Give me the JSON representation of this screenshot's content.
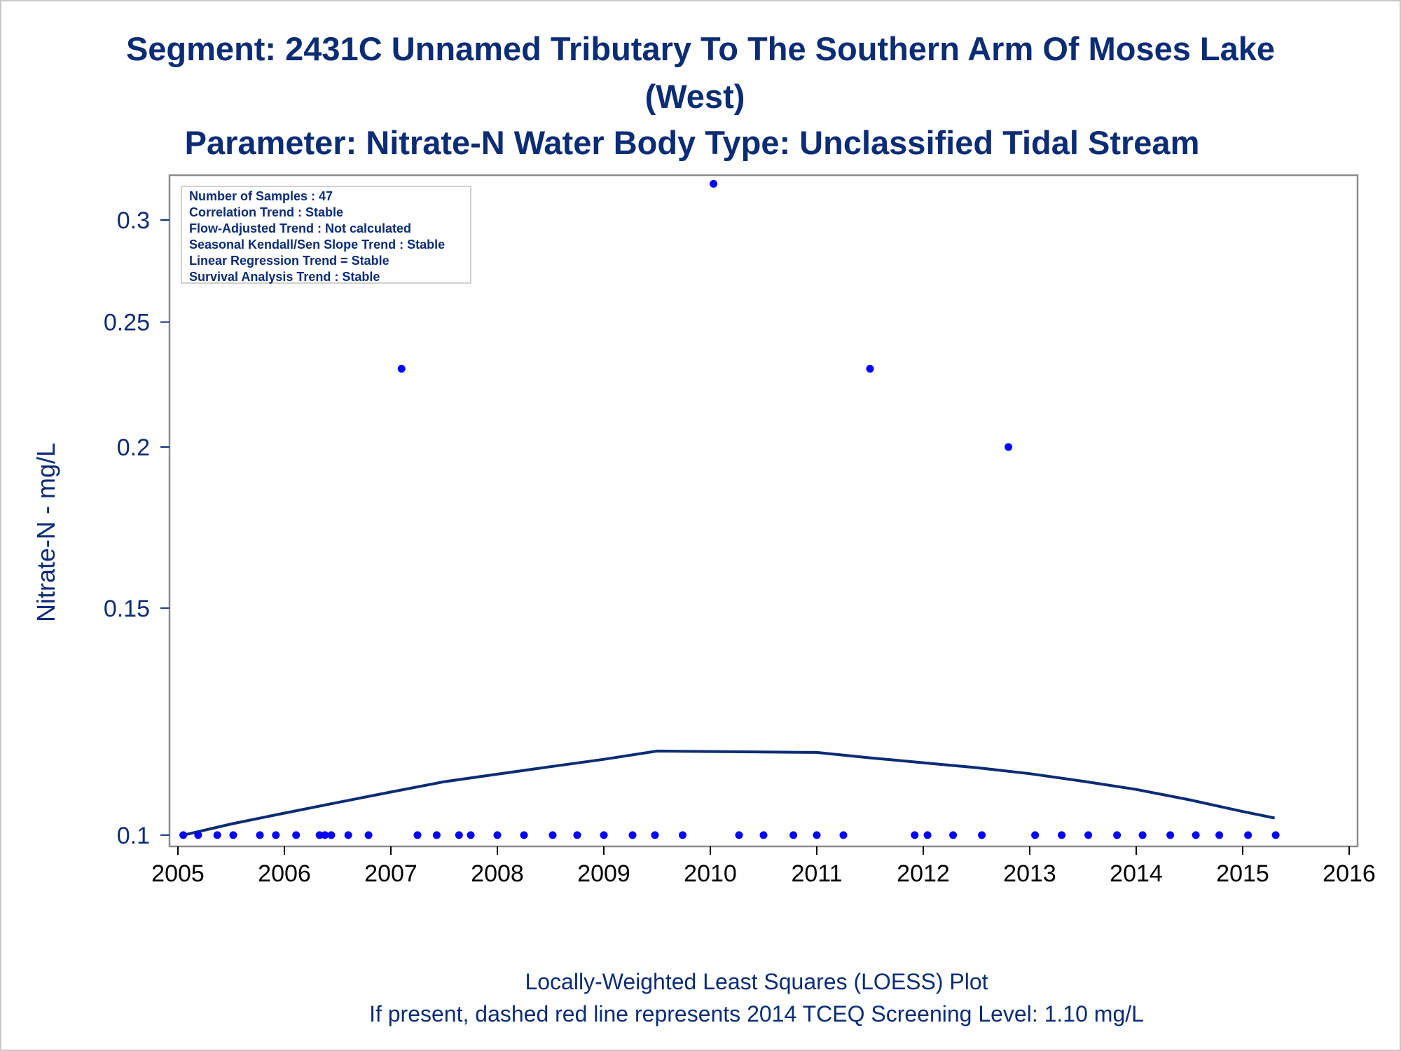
{
  "chart_data": {
    "type": "scatter",
    "title": "Segment: 2431C  Unnamed Tributary To The Southern Arm Of Moses Lake",
    "title_line2": "(West)",
    "subtitle": "Parameter: Nitrate-N   Water Body Type: Unclassified Tidal Stream",
    "xlabel": "",
    "ylabel": "Nitrate-N - mg/L",
    "y_scale": "log",
    "xlim": [
      2005,
      2016
    ],
    "ylim": [
      0.098,
      0.325
    ],
    "x_ticks": [
      2005,
      2006,
      2007,
      2008,
      2009,
      2010,
      2011,
      2012,
      2013,
      2014,
      2015,
      2016
    ],
    "y_ticks": [
      0.1,
      0.15,
      0.2,
      0.25,
      0.3
    ],
    "y_tick_labels": [
      "0.1",
      "0.15",
      "0.2",
      "0.25",
      "0.3"
    ],
    "grid": false,
    "legend": "none",
    "colors": {
      "points": "#0000ff",
      "loess": "#0c2c74",
      "text": "#0c2c74",
      "frame": "#8c8c8c"
    },
    "series": [
      {
        "kind": "scatter",
        "x": [
          2005.05,
          2005.19,
          2005.37,
          2005.52,
          2005.77,
          2005.92,
          2006.11,
          2006.33,
          2006.38,
          2006.44,
          2006.6,
          2006.79,
          2007.1,
          2007.25,
          2007.43,
          2007.64,
          2007.75,
          2008.0,
          2008.25,
          2008.52,
          2008.75,
          2009.0,
          2009.27,
          2009.48,
          2009.74,
          2010.03,
          2010.27,
          2010.5,
          2010.78,
          2011.0,
          2011.25,
          2011.5,
          2011.92,
          2012.04,
          2012.28,
          2012.55,
          2012.8,
          2013.05,
          2013.3,
          2013.55,
          2013.82,
          2014.06,
          2014.32,
          2014.56,
          2014.78,
          2015.05,
          2015.31
        ],
        "y": [
          0.1,
          0.1,
          0.1,
          0.1,
          0.1,
          0.1,
          0.1,
          0.1,
          0.1,
          0.1,
          0.1,
          0.1,
          0.23,
          0.1,
          0.1,
          0.1,
          0.1,
          0.1,
          0.1,
          0.1,
          0.1,
          0.1,
          0.1,
          0.1,
          0.1,
          0.32,
          0.1,
          0.1,
          0.1,
          0.1,
          0.1,
          0.23,
          0.1,
          0.1,
          0.1,
          0.1,
          0.2,
          0.1,
          0.1,
          0.1,
          0.1,
          0.1,
          0.1,
          0.1,
          0.1,
          0.1,
          0.1
        ]
      },
      {
        "kind": "line",
        "x": [
          2005.05,
          2005.5,
          2006.0,
          2006.5,
          2007.0,
          2007.5,
          2008.0,
          2008.5,
          2009.0,
          2009.5,
          2010.0,
          2010.5,
          2011.0,
          2011.5,
          2012.0,
          2012.5,
          2013.0,
          2013.5,
          2014.0,
          2014.5,
          2015.0,
          2015.3
        ],
        "y": [
          0.1,
          0.102,
          0.104,
          0.106,
          0.108,
          0.11,
          0.1115,
          0.113,
          0.1145,
          0.1162,
          0.1161,
          0.116,
          0.1159,
          0.1148,
          0.1138,
          0.1128,
          0.1116,
          0.1101,
          0.1085,
          0.1065,
          0.1043,
          0.1031
        ]
      }
    ],
    "annotations": [
      "Number of Samples : 47",
      "Correlation Trend : Stable",
      "Flow-Adjusted Trend : Not calculated",
      "Seasonal Kendall/Sen Slope Trend : Stable",
      "Linear Regression Trend = Stable",
      "Survival Analysis Trend : Stable"
    ],
    "footnotes": [
      "Locally-Weighted Least Squares (LOESS) Plot",
      "If present, dashed red line represents 2014 TCEQ Screening Level: 1.10 mg/L"
    ]
  }
}
